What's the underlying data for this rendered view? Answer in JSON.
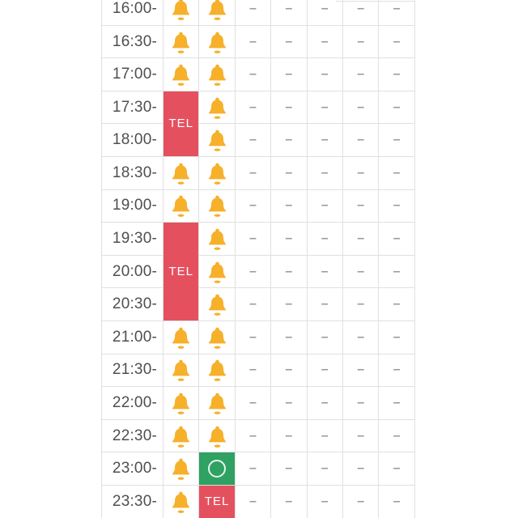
{
  "colors": {
    "bell": "#F6B02A",
    "tel_bg": "#E5505F",
    "tel_text": "#FFFFFF",
    "open_bg": "#2EA163",
    "open_ring": "#FFFFFF",
    "dash": "#9A9A9A",
    "time_text": "#4F4F4F",
    "border": "#E0E0E0",
    "background": "#FFFFFF"
  },
  "labels": {
    "tel": "TEL",
    "dash": "–"
  },
  "icons": {
    "bell": "bell-icon",
    "open": "circle-outline-icon"
  },
  "table": {
    "time_column": [
      "16:00-",
      "16:30-",
      "17:00-",
      "17:30-",
      "18:00-",
      "18:30-",
      "19:00-",
      "19:30-",
      "20:00-",
      "20:30-",
      "21:00-",
      "21:30-",
      "22:00-",
      "22:30-",
      "23:00-",
      "23:30-"
    ],
    "rows": [
      {
        "time": "16:00-",
        "cells": [
          {
            "type": "bell"
          },
          {
            "type": "bell"
          },
          {
            "type": "dash"
          },
          {
            "type": "dash"
          },
          {
            "type": "dash"
          },
          {
            "type": "dash"
          },
          {
            "type": "dash"
          }
        ]
      },
      {
        "time": "16:30-",
        "cells": [
          {
            "type": "bell"
          },
          {
            "type": "bell"
          },
          {
            "type": "dash"
          },
          {
            "type": "dash"
          },
          {
            "type": "dash"
          },
          {
            "type": "dash"
          },
          {
            "type": "dash"
          }
        ]
      },
      {
        "time": "17:00-",
        "cells": [
          {
            "type": "bell"
          },
          {
            "type": "bell"
          },
          {
            "type": "dash"
          },
          {
            "type": "dash"
          },
          {
            "type": "dash"
          },
          {
            "type": "dash"
          },
          {
            "type": "dash"
          }
        ]
      },
      {
        "time": "17:30-",
        "cells": [
          {
            "type": "tel",
            "rowspan": 2
          },
          {
            "type": "bell"
          },
          {
            "type": "dash"
          },
          {
            "type": "dash"
          },
          {
            "type": "dash"
          },
          {
            "type": "dash"
          },
          {
            "type": "dash"
          }
        ]
      },
      {
        "time": "18:00-",
        "cells": [
          {
            "type": "span"
          },
          {
            "type": "bell"
          },
          {
            "type": "dash"
          },
          {
            "type": "dash"
          },
          {
            "type": "dash"
          },
          {
            "type": "dash"
          },
          {
            "type": "dash"
          }
        ]
      },
      {
        "time": "18:30-",
        "cells": [
          {
            "type": "bell"
          },
          {
            "type": "bell"
          },
          {
            "type": "dash"
          },
          {
            "type": "dash"
          },
          {
            "type": "dash"
          },
          {
            "type": "dash"
          },
          {
            "type": "dash"
          }
        ]
      },
      {
        "time": "19:00-",
        "cells": [
          {
            "type": "bell"
          },
          {
            "type": "bell"
          },
          {
            "type": "dash"
          },
          {
            "type": "dash"
          },
          {
            "type": "dash"
          },
          {
            "type": "dash"
          },
          {
            "type": "dash"
          }
        ]
      },
      {
        "time": "19:30-",
        "cells": [
          {
            "type": "tel",
            "rowspan": 3
          },
          {
            "type": "bell"
          },
          {
            "type": "dash"
          },
          {
            "type": "dash"
          },
          {
            "type": "dash"
          },
          {
            "type": "dash"
          },
          {
            "type": "dash"
          }
        ]
      },
      {
        "time": "20:00-",
        "cells": [
          {
            "type": "span"
          },
          {
            "type": "bell"
          },
          {
            "type": "dash"
          },
          {
            "type": "dash"
          },
          {
            "type": "dash"
          },
          {
            "type": "dash"
          },
          {
            "type": "dash"
          }
        ]
      },
      {
        "time": "20:30-",
        "cells": [
          {
            "type": "span"
          },
          {
            "type": "bell"
          },
          {
            "type": "dash"
          },
          {
            "type": "dash"
          },
          {
            "type": "dash"
          },
          {
            "type": "dash"
          },
          {
            "type": "dash"
          }
        ]
      },
      {
        "time": "21:00-",
        "cells": [
          {
            "type": "bell"
          },
          {
            "type": "bell"
          },
          {
            "type": "dash"
          },
          {
            "type": "dash"
          },
          {
            "type": "dash"
          },
          {
            "type": "dash"
          },
          {
            "type": "dash"
          }
        ]
      },
      {
        "time": "21:30-",
        "cells": [
          {
            "type": "bell"
          },
          {
            "type": "bell"
          },
          {
            "type": "dash"
          },
          {
            "type": "dash"
          },
          {
            "type": "dash"
          },
          {
            "type": "dash"
          },
          {
            "type": "dash"
          }
        ]
      },
      {
        "time": "22:00-",
        "cells": [
          {
            "type": "bell"
          },
          {
            "type": "bell"
          },
          {
            "type": "dash"
          },
          {
            "type": "dash"
          },
          {
            "type": "dash"
          },
          {
            "type": "dash"
          },
          {
            "type": "dash"
          }
        ]
      },
      {
        "time": "22:30-",
        "cells": [
          {
            "type": "bell"
          },
          {
            "type": "bell"
          },
          {
            "type": "dash"
          },
          {
            "type": "dash"
          },
          {
            "type": "dash"
          },
          {
            "type": "dash"
          },
          {
            "type": "dash"
          }
        ]
      },
      {
        "time": "23:00-",
        "cells": [
          {
            "type": "bell"
          },
          {
            "type": "open"
          },
          {
            "type": "dash"
          },
          {
            "type": "dash"
          },
          {
            "type": "dash"
          },
          {
            "type": "dash"
          },
          {
            "type": "dash"
          }
        ]
      },
      {
        "time": "23:30-",
        "cells": [
          {
            "type": "bell"
          },
          {
            "type": "tel"
          },
          {
            "type": "dash"
          },
          {
            "type": "dash"
          },
          {
            "type": "dash"
          },
          {
            "type": "dash"
          },
          {
            "type": "dash"
          }
        ]
      }
    ]
  }
}
